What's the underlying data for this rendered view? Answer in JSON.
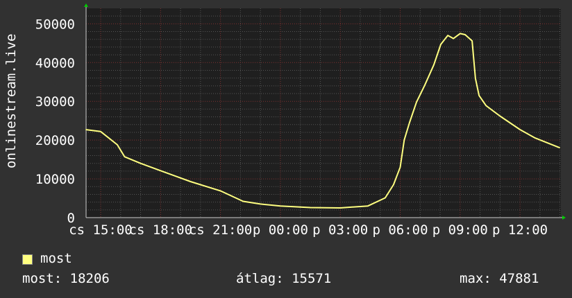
{
  "chart_data": {
    "type": "line",
    "ylabel": "onlinestream.live",
    "ylim": [
      0,
      54000
    ],
    "yticks": [
      0,
      10000,
      20000,
      30000,
      40000,
      50000
    ],
    "xlim": [
      "cs 14:15",
      "p 14:00"
    ],
    "xticks": [
      "cs 15:00",
      "cs 18:00",
      "cs 21:00",
      "p 00:00",
      "p 03:00",
      "p 06:00",
      "p 09:00",
      "p 12:00"
    ],
    "grid": true,
    "colors": {
      "line": "#ffff80",
      "background": "#313131",
      "plot": "#1f1f1f",
      "major_grid": "#803030",
      "minor_grid": "#555555",
      "arrow": "#00cc00"
    },
    "series": [
      {
        "name": "most",
        "points": [
          [
            "cs 14:15",
            22700
          ],
          [
            "cs 15:00",
            22200
          ],
          [
            "cs 15:50",
            18800
          ],
          [
            "cs 16:12",
            15700
          ],
          [
            "cs 17:00",
            14000
          ],
          [
            "cs 18:00",
            12100
          ],
          [
            "cs 19:30",
            9300
          ],
          [
            "cs 21:00",
            6900
          ],
          [
            "cs 22:08",
            4200
          ],
          [
            "cs 23:00",
            3500
          ],
          [
            "p 00:00",
            3000
          ],
          [
            "p 01:30",
            2600
          ],
          [
            "p 03:00",
            2500
          ],
          [
            "p 04:23",
            3000
          ],
          [
            "p 05:15",
            5100
          ],
          [
            "p 05:40",
            8500
          ],
          [
            "p 06:00",
            13000
          ],
          [
            "p 06:12",
            20000
          ],
          [
            "p 06:28",
            24500
          ],
          [
            "p 06:49",
            29800
          ],
          [
            "p 07:14",
            34200
          ],
          [
            "p 07:41",
            39400
          ],
          [
            "p 08:02",
            44700
          ],
          [
            "p 08:23",
            47000
          ],
          [
            "p 08:40",
            46200
          ],
          [
            "p 09:00",
            47500
          ],
          [
            "p 09:15",
            47200
          ],
          [
            "p 09:36",
            45600
          ],
          [
            "p 09:46",
            35900
          ],
          [
            "p 09:57",
            31500
          ],
          [
            "p 10:18",
            28900
          ],
          [
            "p 11:00",
            26200
          ],
          [
            "p 12:00",
            22700
          ],
          [
            "p 12:44",
            20600
          ],
          [
            "p 14:00",
            18000
          ]
        ]
      }
    ],
    "legend": {
      "placement": "bottom-left",
      "entries": [
        "most"
      ]
    }
  },
  "stats": {
    "current": "most: 18206",
    "average": "átlag: 15571",
    "max": "max: 47881"
  }
}
